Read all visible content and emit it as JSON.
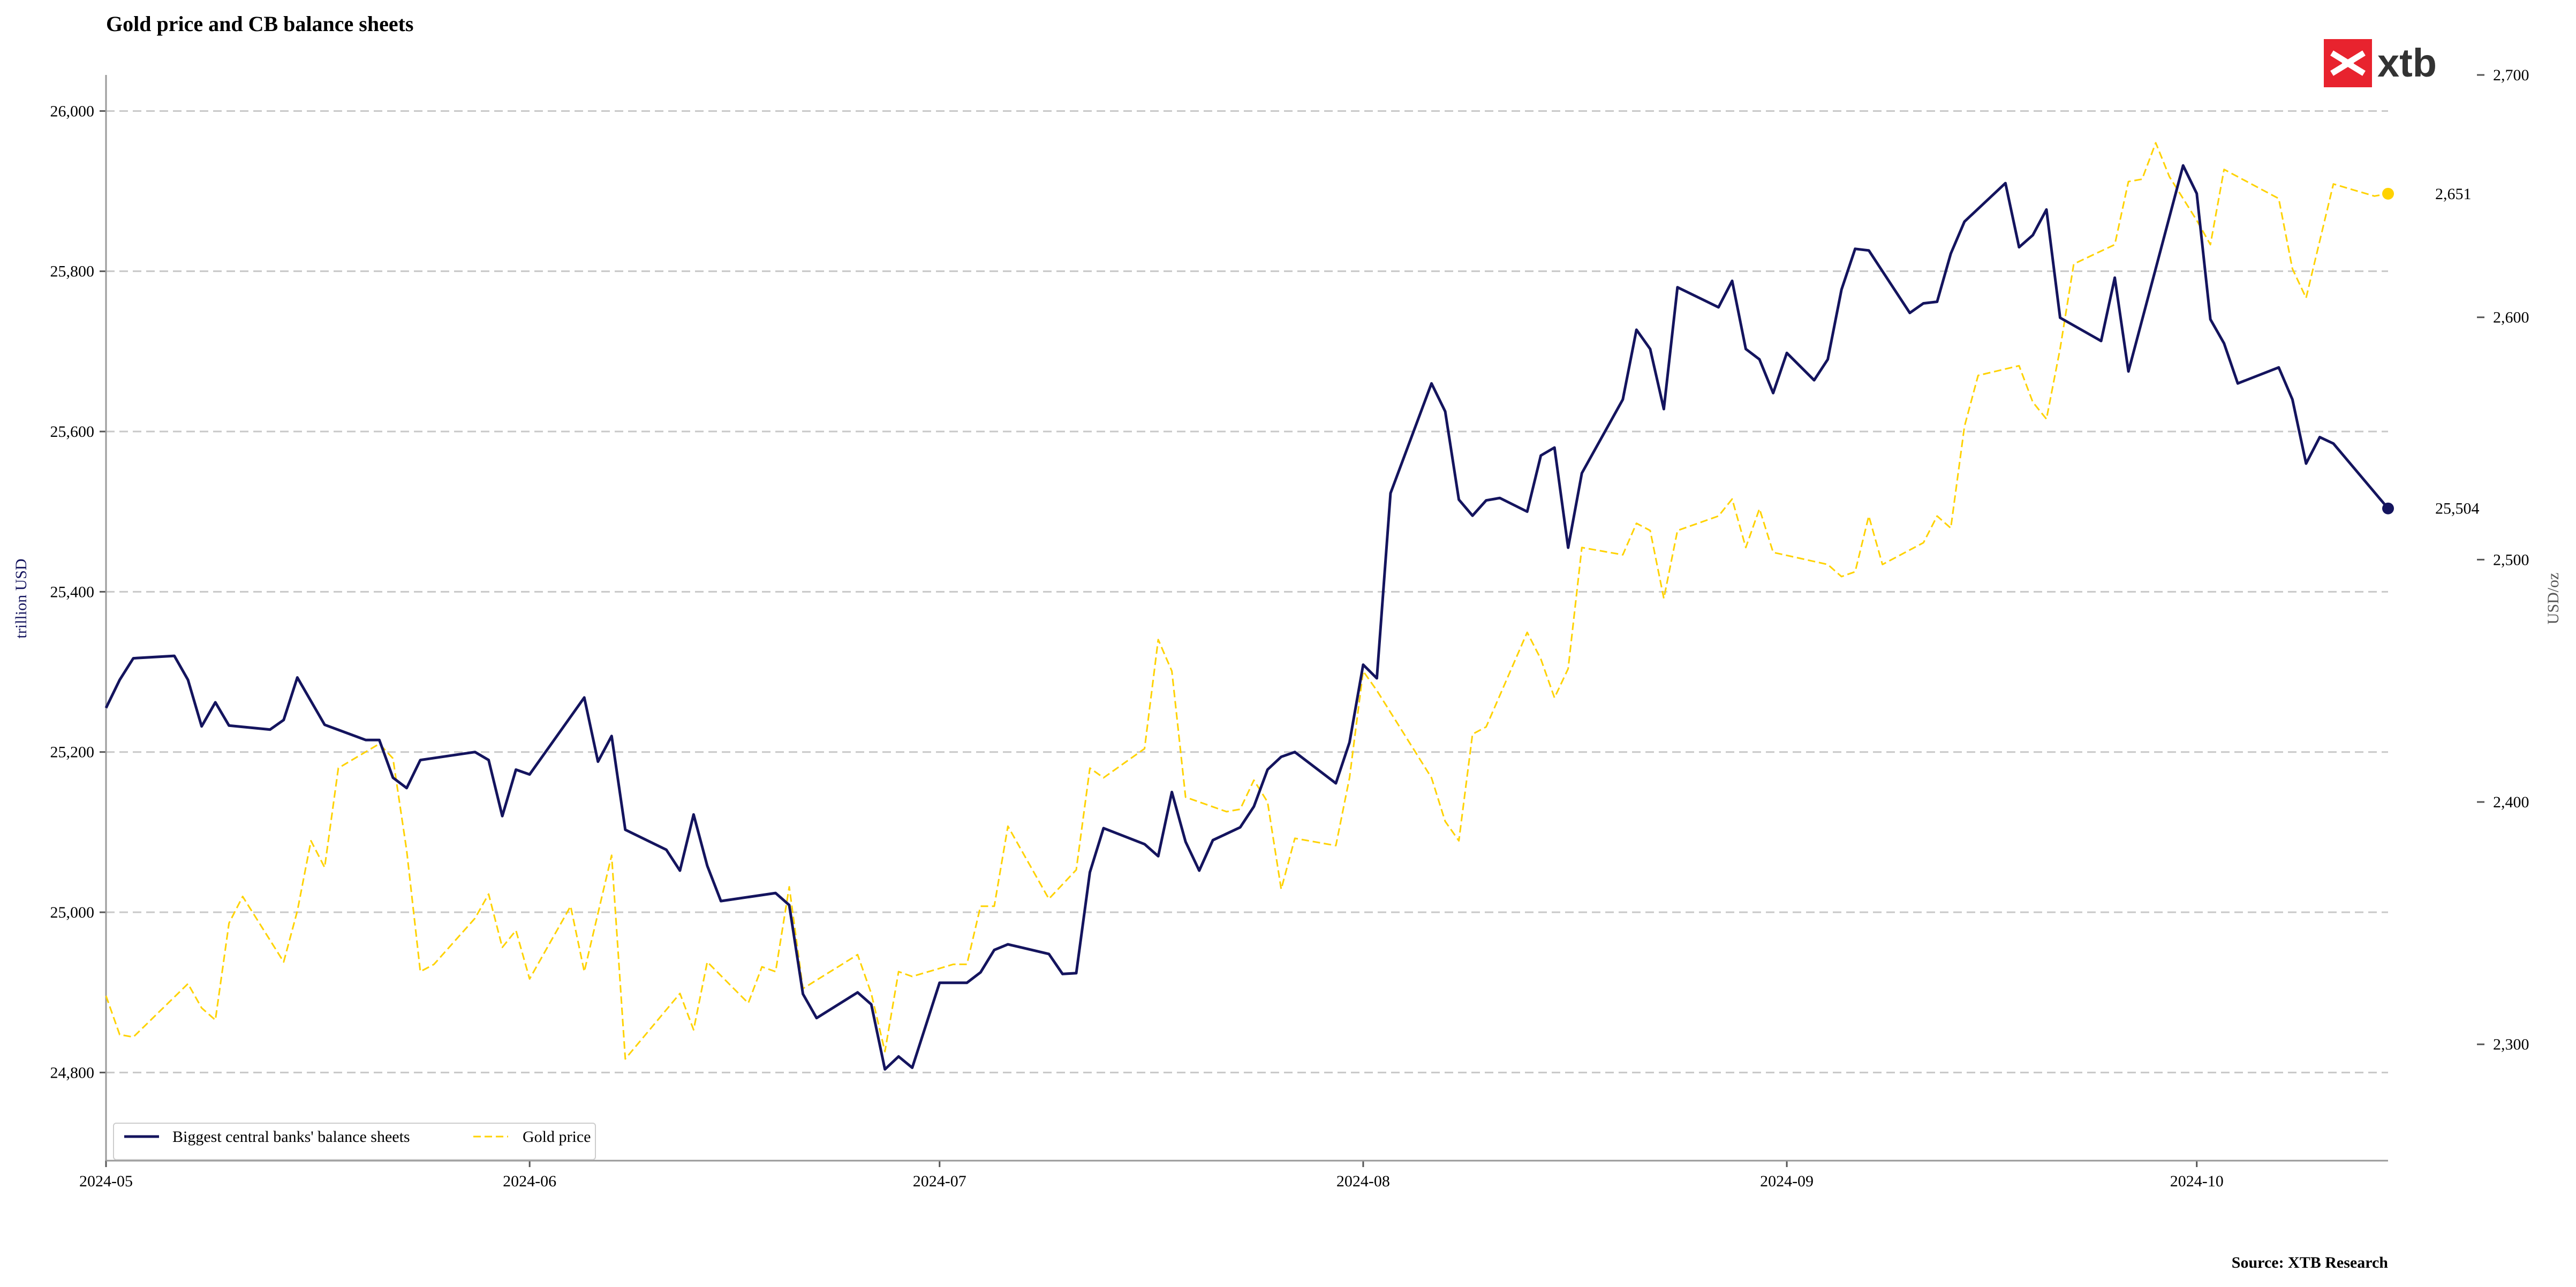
{
  "brand": {
    "name": "xtb",
    "color": "#e8232e",
    "text_color": "#333333",
    "icon": "xtb-logo-icon"
  },
  "source": "Source: XTB Research",
  "colors": {
    "balance": "#14145e",
    "gold": "#ffd200",
    "grid": "#c8c8c8",
    "axis": "#999999"
  },
  "chart_data": {
    "type": "line",
    "title": "Gold price and CB balance sheets",
    "ylabel": "trillion USD",
    "y2label": "USD/oz",
    "xlim": [
      "2024-05-01",
      "2024-10-15"
    ],
    "ylim": [
      24690,
      26045
    ],
    "y2lim": [
      2252,
      2700
    ],
    "x_ticks": [
      "2024-05",
      "2024-06",
      "2024-07",
      "2024-08",
      "2024-09",
      "2024-10"
    ],
    "y_ticks": [
      "24,800",
      "25,000",
      "25,200",
      "25,400",
      "25,600",
      "25,800",
      "26,000"
    ],
    "y2_ticks": [
      "2,300",
      "2,400",
      "2,500",
      "2,600",
      "2,700"
    ],
    "grid": true,
    "legend_position": "bottom-left",
    "series": [
      {
        "name": "Biggest central banks' balance sheets",
        "axis": "left",
        "style": "solid",
        "end_label": "25,504",
        "points": [
          [
            "2024-05-01",
            25255
          ],
          [
            "2024-05-02",
            25290
          ],
          [
            "2024-05-03",
            25317
          ],
          [
            "2024-05-06",
            25320
          ],
          [
            "2024-05-07",
            25290
          ],
          [
            "2024-05-08",
            25232
          ],
          [
            "2024-05-09",
            25262
          ],
          [
            "2024-05-10",
            25233
          ],
          [
            "2024-05-13",
            25228
          ],
          [
            "2024-05-14",
            25240
          ],
          [
            "2024-05-15",
            25293
          ],
          [
            "2024-05-17",
            25234
          ],
          [
            "2024-05-20",
            25215
          ],
          [
            "2024-05-21",
            25215
          ],
          [
            "2024-05-22",
            25168
          ],
          [
            "2024-05-23",
            25155
          ],
          [
            "2024-05-24",
            25190
          ],
          [
            "2024-05-28",
            25200
          ],
          [
            "2024-05-29",
            25190
          ],
          [
            "2024-05-30",
            25120
          ],
          [
            "2024-05-31",
            25178
          ],
          [
            "2024-06-01",
            25172
          ],
          [
            "2024-06-05",
            25268
          ],
          [
            "2024-06-06",
            25188
          ],
          [
            "2024-06-07",
            25220
          ],
          [
            "2024-06-08",
            25103
          ],
          [
            "2024-06-11",
            25078
          ],
          [
            "2024-06-12",
            25052
          ],
          [
            "2024-06-13",
            25122
          ],
          [
            "2024-06-14",
            25058
          ],
          [
            "2024-06-15",
            25014
          ],
          [
            "2024-06-19",
            25024
          ],
          [
            "2024-06-20",
            25009
          ],
          [
            "2024-06-21",
            24898
          ],
          [
            "2024-06-22",
            24868
          ],
          [
            "2024-06-25",
            24900
          ],
          [
            "2024-06-26",
            24885
          ],
          [
            "2024-06-27",
            24804
          ],
          [
            "2024-06-28",
            24820
          ],
          [
            "2024-06-29",
            24806
          ],
          [
            "2024-07-01",
            24912
          ],
          [
            "2024-07-03",
            24912
          ],
          [
            "2024-07-04",
            24925
          ],
          [
            "2024-07-05",
            24953
          ],
          [
            "2024-07-06",
            24960
          ],
          [
            "2024-07-09",
            24948
          ],
          [
            "2024-07-10",
            24923
          ],
          [
            "2024-07-11",
            24924
          ],
          [
            "2024-07-12",
            25050
          ],
          [
            "2024-07-13",
            25105
          ],
          [
            "2024-07-16",
            25085
          ],
          [
            "2024-07-17",
            25070
          ],
          [
            "2024-07-18",
            25150
          ],
          [
            "2024-07-19",
            25088
          ],
          [
            "2024-07-20",
            25052
          ],
          [
            "2024-07-21",
            25090
          ],
          [
            "2024-07-23",
            25106
          ],
          [
            "2024-07-24",
            25132
          ],
          [
            "2024-07-25",
            25178
          ],
          [
            "2024-07-26",
            25194
          ],
          [
            "2024-07-27",
            25200
          ],
          [
            "2024-07-30",
            25161
          ],
          [
            "2024-07-31",
            25212
          ],
          [
            "2024-08-01",
            25309
          ],
          [
            "2024-08-02",
            25292
          ],
          [
            "2024-08-03",
            25523
          ],
          [
            "2024-08-06",
            25660
          ],
          [
            "2024-08-07",
            25625
          ],
          [
            "2024-08-08",
            25515
          ],
          [
            "2024-08-09",
            25495
          ],
          [
            "2024-08-10",
            25514
          ],
          [
            "2024-08-11",
            25517
          ],
          [
            "2024-08-13",
            25500
          ],
          [
            "2024-08-14",
            25570
          ],
          [
            "2024-08-15",
            25580
          ],
          [
            "2024-08-16",
            25455
          ],
          [
            "2024-08-17",
            25548
          ],
          [
            "2024-08-20",
            25640
          ],
          [
            "2024-08-21",
            25727
          ],
          [
            "2024-08-22",
            25703
          ],
          [
            "2024-08-23",
            25628
          ],
          [
            "2024-08-24",
            25780
          ],
          [
            "2024-08-27",
            25755
          ],
          [
            "2024-08-28",
            25788
          ],
          [
            "2024-08-29",
            25703
          ],
          [
            "2024-08-30",
            25690
          ],
          [
            "2024-08-31",
            25648
          ],
          [
            "2024-09-01",
            25698
          ],
          [
            "2024-09-03",
            25664
          ],
          [
            "2024-09-04",
            25690
          ],
          [
            "2024-09-05",
            25777
          ],
          [
            "2024-09-06",
            25828
          ],
          [
            "2024-09-07",
            25826
          ],
          [
            "2024-09-10",
            25748
          ],
          [
            "2024-09-11",
            25760
          ],
          [
            "2024-09-12",
            25762
          ],
          [
            "2024-09-13",
            25822
          ],
          [
            "2024-09-14",
            25862
          ],
          [
            "2024-09-17",
            25910
          ],
          [
            "2024-09-18",
            25830
          ],
          [
            "2024-09-19",
            25845
          ],
          [
            "2024-09-20",
            25877
          ],
          [
            "2024-09-21",
            25742
          ],
          [
            "2024-09-24",
            25713
          ],
          [
            "2024-09-25",
            25792
          ],
          [
            "2024-09-26",
            25675
          ],
          [
            "2024-09-30",
            25932
          ],
          [
            "2024-10-01",
            25897
          ],
          [
            "2024-10-02",
            25740
          ],
          [
            "2024-10-03",
            25710
          ],
          [
            "2024-10-04",
            25660
          ],
          [
            "2024-10-07",
            25680
          ],
          [
            "2024-10-08",
            25640
          ],
          [
            "2024-10-09",
            25560
          ],
          [
            "2024-10-10",
            25593
          ],
          [
            "2024-10-11",
            25585
          ],
          [
            "2024-10-15",
            25504
          ]
        ]
      },
      {
        "name": "Gold price",
        "axis": "right",
        "style": "dashed",
        "end_label": "2,651",
        "points": [
          [
            "2024-05-01",
            2320
          ],
          [
            "2024-05-02",
            2304
          ],
          [
            "2024-05-03",
            2303
          ],
          [
            "2024-05-07",
            2325
          ],
          [
            "2024-05-08",
            2315
          ],
          [
            "2024-05-09",
            2310
          ],
          [
            "2024-05-10",
            2350
          ],
          [
            "2024-05-11",
            2361
          ],
          [
            "2024-05-14",
            2334
          ],
          [
            "2024-05-15",
            2355
          ],
          [
            "2024-05-16",
            2384
          ],
          [
            "2024-05-17",
            2373
          ],
          [
            "2024-05-18",
            2414
          ],
          [
            "2024-05-21",
            2424
          ],
          [
            "2024-05-22",
            2418
          ],
          [
            "2024-05-23",
            2380
          ],
          [
            "2024-05-24",
            2330
          ],
          [
            "2024-05-25",
            2333
          ],
          [
            "2024-05-28",
            2352
          ],
          [
            "2024-05-29",
            2362
          ],
          [
            "2024-05-30",
            2340
          ],
          [
            "2024-05-31",
            2347
          ],
          [
            "2024-06-01",
            2327
          ],
          [
            "2024-06-04",
            2357
          ],
          [
            "2024-06-05",
            2330
          ],
          [
            "2024-06-07",
            2378
          ],
          [
            "2024-06-08",
            2294
          ],
          [
            "2024-06-12",
            2321
          ],
          [
            "2024-06-13",
            2306
          ],
          [
            "2024-06-14",
            2334
          ],
          [
            "2024-06-17",
            2317
          ],
          [
            "2024-06-18",
            2332
          ],
          [
            "2024-06-19",
            2330
          ],
          [
            "2024-06-20",
            2365
          ],
          [
            "2024-06-21",
            2323
          ],
          [
            "2024-06-25",
            2337
          ],
          [
            "2024-06-26",
            2321
          ],
          [
            "2024-06-27",
            2297
          ],
          [
            "2024-06-28",
            2330
          ],
          [
            "2024-06-29",
            2328
          ],
          [
            "2024-07-02",
            2333
          ],
          [
            "2024-07-03",
            2333
          ],
          [
            "2024-07-04",
            2357
          ],
          [
            "2024-07-05",
            2357
          ],
          [
            "2024-07-06",
            2390
          ],
          [
            "2024-07-09",
            2360
          ],
          [
            "2024-07-10",
            2366
          ],
          [
            "2024-07-11",
            2372
          ],
          [
            "2024-07-12",
            2414
          ],
          [
            "2024-07-13",
            2410
          ],
          [
            "2024-07-16",
            2422
          ],
          [
            "2024-07-17",
            2467
          ],
          [
            "2024-07-18",
            2454
          ],
          [
            "2024-07-19",
            2402
          ],
          [
            "2024-07-22",
            2396
          ],
          [
            "2024-07-23",
            2397
          ],
          [
            "2024-07-24",
            2409
          ],
          [
            "2024-07-25",
            2400
          ],
          [
            "2024-07-26",
            2364
          ],
          [
            "2024-07-27",
            2385
          ],
          [
            "2024-07-30",
            2382
          ],
          [
            "2024-07-31",
            2410
          ],
          [
            "2024-08-01",
            2454
          ],
          [
            "2024-08-02",
            2446
          ],
          [
            "2024-08-06",
            2410
          ],
          [
            "2024-08-07",
            2392
          ],
          [
            "2024-08-08",
            2384
          ],
          [
            "2024-08-09",
            2428
          ],
          [
            "2024-08-10",
            2431
          ],
          [
            "2024-08-13",
            2470
          ],
          [
            "2024-08-14",
            2459
          ],
          [
            "2024-08-15",
            2443
          ],
          [
            "2024-08-16",
            2455
          ],
          [
            "2024-08-17",
            2505
          ],
          [
            "2024-08-20",
            2502
          ],
          [
            "2024-08-21",
            2515
          ],
          [
            "2024-08-22",
            2512
          ],
          [
            "2024-08-23",
            2484
          ],
          [
            "2024-08-24",
            2512
          ],
          [
            "2024-08-27",
            2518
          ],
          [
            "2024-08-28",
            2525
          ],
          [
            "2024-08-29",
            2505
          ],
          [
            "2024-08-30",
            2521
          ],
          [
            "2024-08-31",
            2503
          ],
          [
            "2024-09-04",
            2498
          ],
          [
            "2024-09-05",
            2493
          ],
          [
            "2024-09-06",
            2495
          ],
          [
            "2024-09-07",
            2518
          ],
          [
            "2024-09-08",
            2498
          ],
          [
            "2024-09-11",
            2507
          ],
          [
            "2024-09-12",
            2518
          ],
          [
            "2024-09-13",
            2513
          ],
          [
            "2024-09-14",
            2555
          ],
          [
            "2024-09-15",
            2576
          ],
          [
            "2024-09-18",
            2580
          ],
          [
            "2024-09-19",
            2565
          ],
          [
            "2024-09-20",
            2558
          ],
          [
            "2024-09-21",
            2587
          ],
          [
            "2024-09-22",
            2622
          ],
          [
            "2024-09-25",
            2630
          ],
          [
            "2024-09-26",
            2656
          ],
          [
            "2024-09-27",
            2657
          ],
          [
            "2024-09-28",
            2672
          ],
          [
            "2024-09-29",
            2658
          ],
          [
            "2024-10-01",
            2640
          ],
          [
            "2024-10-02",
            2630
          ],
          [
            "2024-10-03",
            2661
          ],
          [
            "2024-10-07",
            2649
          ],
          [
            "2024-10-08",
            2620
          ],
          [
            "2024-10-09",
            2608
          ],
          [
            "2024-10-11",
            2655
          ],
          [
            "2024-10-14",
            2650
          ],
          [
            "2024-10-15",
            2651
          ]
        ]
      }
    ]
  }
}
